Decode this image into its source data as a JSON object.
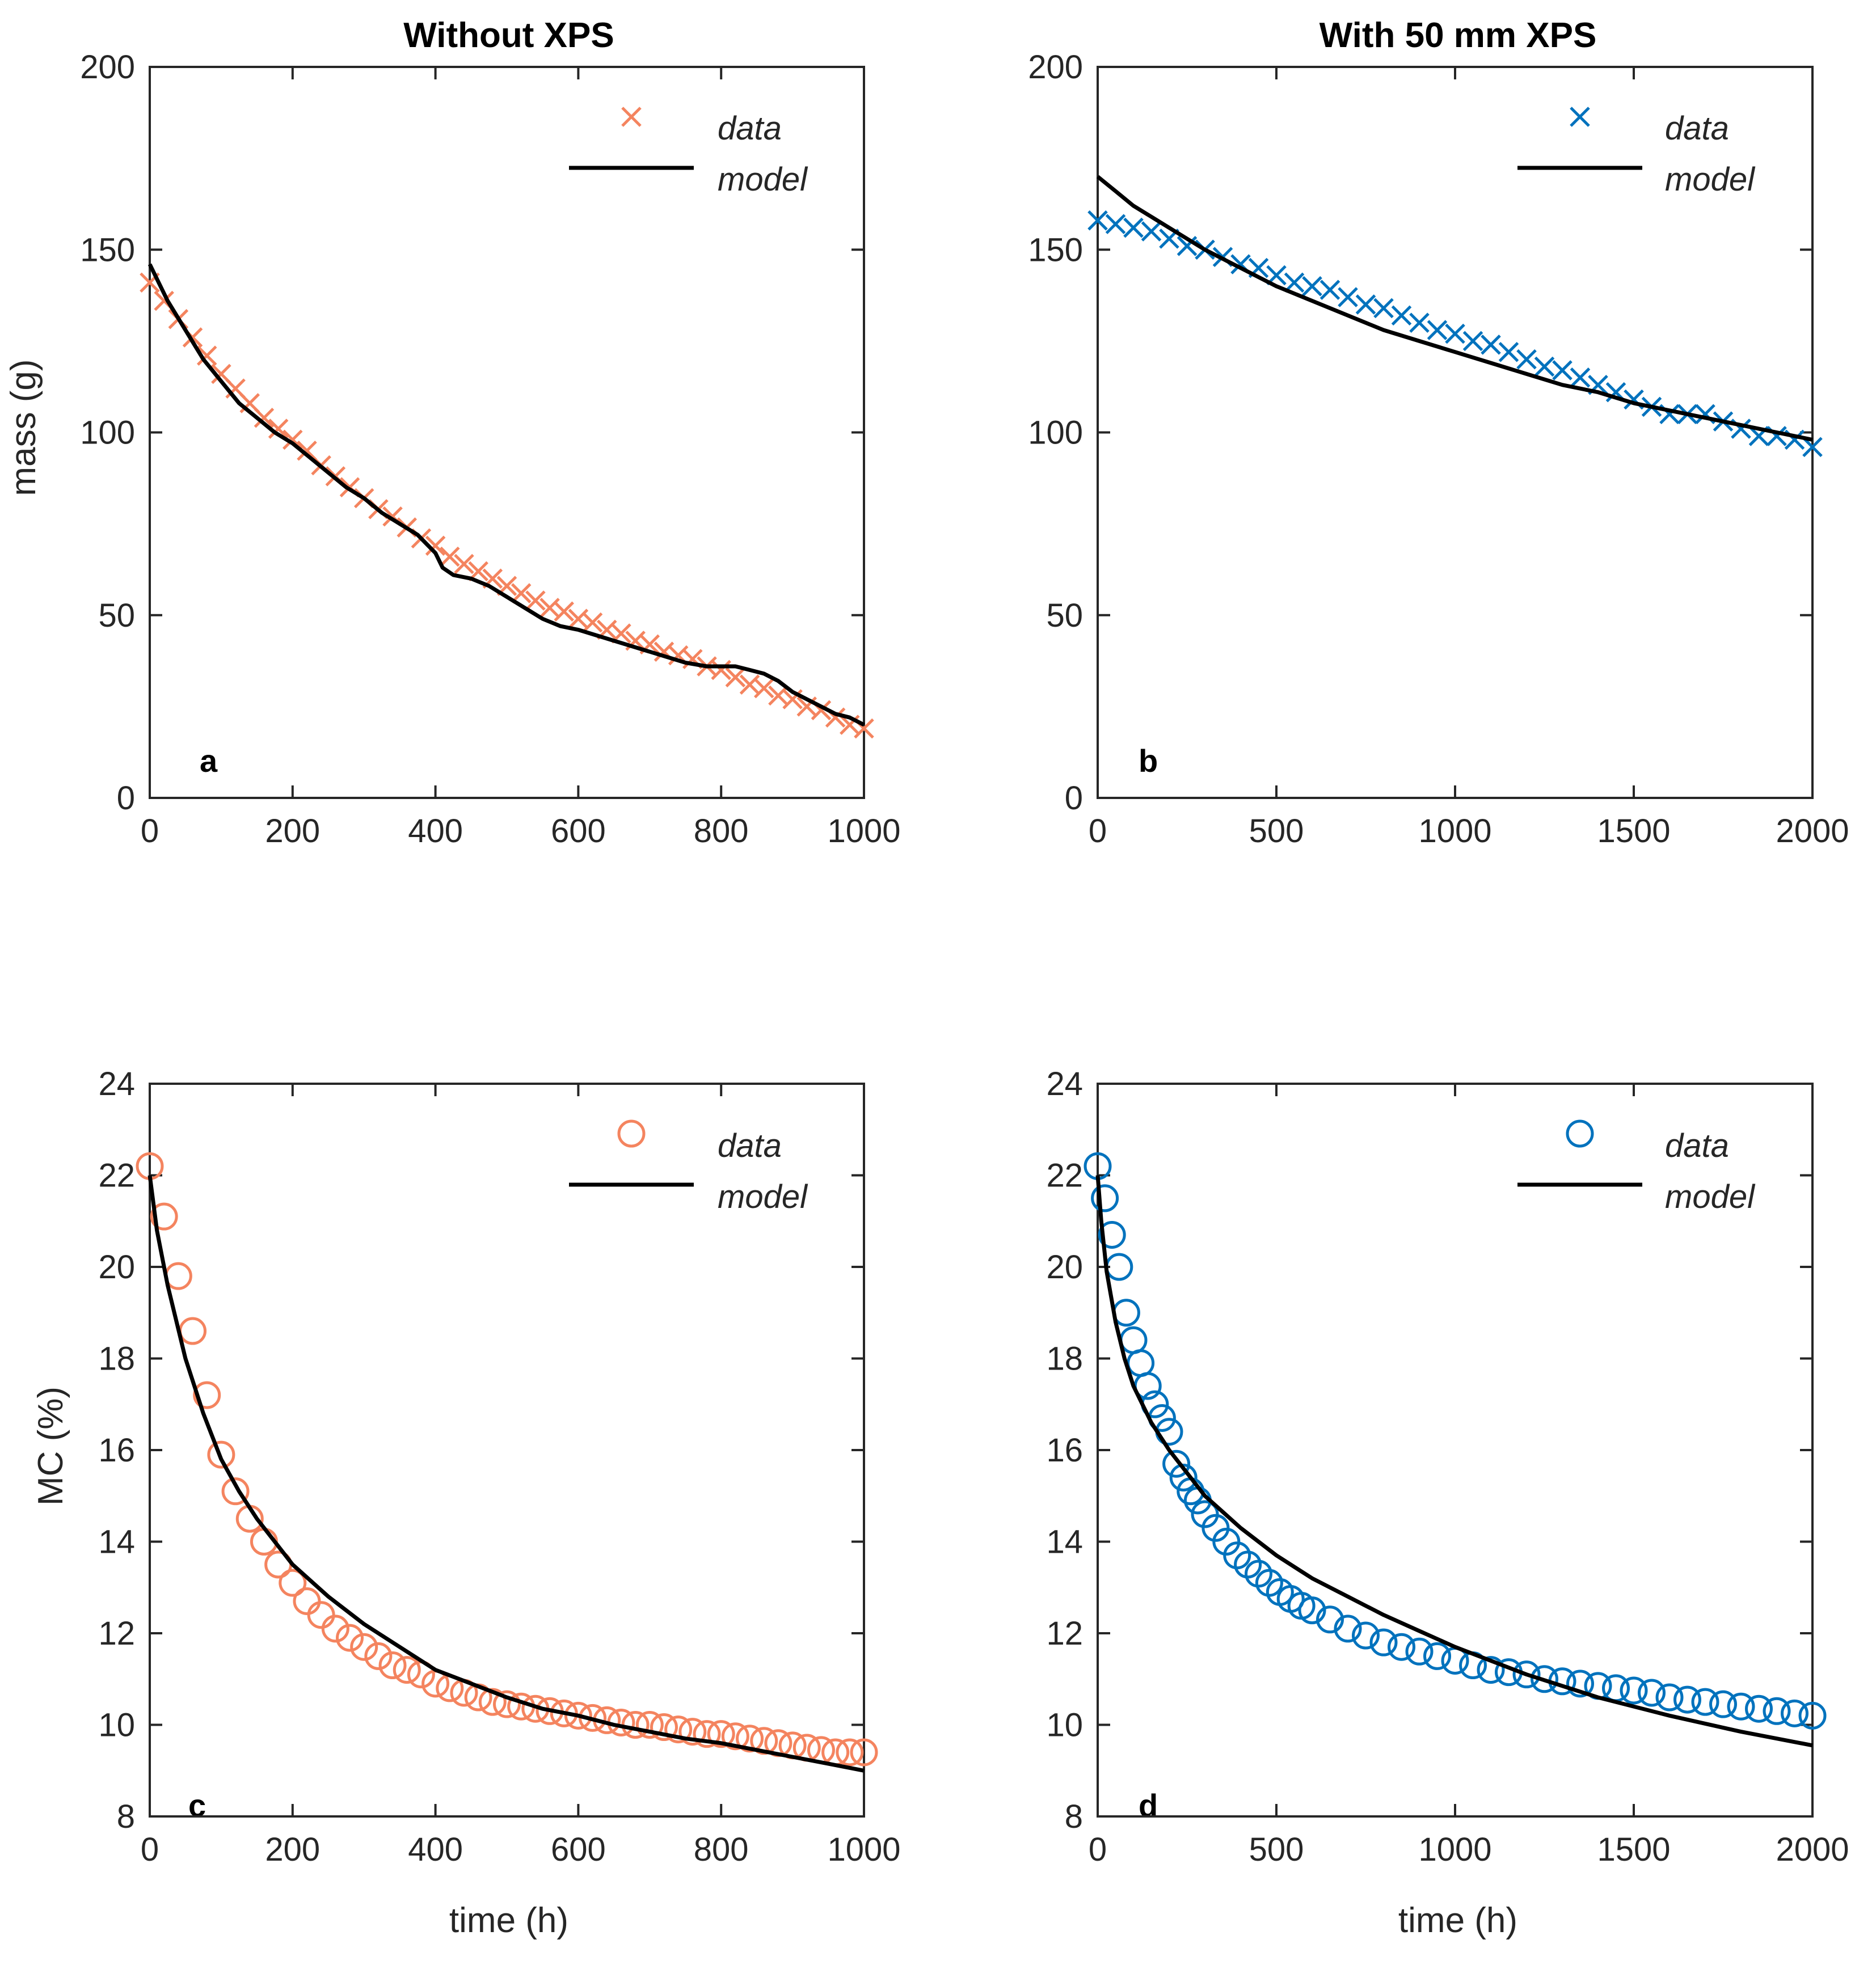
{
  "colors": {
    "left": "#F4845F",
    "right": "#0072BD",
    "model": "#000000",
    "axis": "#262626"
  },
  "chart_data": [
    {
      "type": "line",
      "panel": "a",
      "title": "Without XPS",
      "xlabel": "",
      "ylabel": "mass (g)",
      "xlim": [
        0,
        1000
      ],
      "ylim": [
        0,
        200
      ],
      "xticks": [
        "0",
        "200",
        "400",
        "600",
        "800",
        "1000"
      ],
      "yticks": [
        "0",
        "50",
        "100",
        "150",
        "200"
      ],
      "marker": "x",
      "legend": {
        "data": "data",
        "model": "model",
        "position": "top-right"
      },
      "series": [
        {
          "name": "data",
          "color_key": "left",
          "x": [
            0,
            20,
            40,
            60,
            80,
            100,
            120,
            140,
            160,
            180,
            200,
            220,
            240,
            260,
            280,
            300,
            320,
            340,
            360,
            380,
            400,
            420,
            440,
            460,
            480,
            500,
            520,
            540,
            560,
            580,
            600,
            620,
            640,
            660,
            680,
            700,
            720,
            740,
            760,
            780,
            800,
            820,
            840,
            860,
            880,
            900,
            920,
            940,
            960,
            980,
            1000
          ],
          "y": [
            141,
            136,
            131,
            126,
            121,
            116,
            112,
            108,
            104,
            101,
            98,
            95,
            91,
            88,
            85,
            82,
            79,
            77,
            74,
            71,
            69,
            66,
            64,
            62,
            60,
            58,
            56,
            54,
            52,
            51,
            49,
            48,
            46,
            45,
            43,
            42,
            40,
            39,
            38,
            36,
            35,
            33,
            31,
            30,
            28,
            27,
            25,
            24,
            22,
            20,
            19
          ]
        },
        {
          "name": "model",
          "color_key": "model",
          "x": [
            0,
            25,
            50,
            75,
            100,
            125,
            150,
            175,
            200,
            225,
            250,
            275,
            300,
            325,
            350,
            375,
            400,
            410,
            425,
            450,
            475,
            500,
            525,
            550,
            575,
            600,
            650,
            700,
            750,
            780,
            800,
            820,
            840,
            860,
            880,
            900,
            920,
            940,
            960,
            980,
            1000
          ],
          "y": [
            146,
            136,
            128,
            120,
            114,
            108,
            104,
            100,
            97,
            93,
            89,
            85,
            82,
            78,
            75,
            72,
            67,
            63,
            61,
            60,
            58,
            55,
            52,
            49,
            47,
            46,
            43,
            40,
            37,
            36,
            36,
            36,
            35,
            34,
            32,
            29,
            27,
            25,
            23,
            22,
            20
          ]
        }
      ]
    },
    {
      "type": "line",
      "panel": "b",
      "title": "With 50 mm XPS",
      "xlabel": "",
      "ylabel": "",
      "xlim": [
        0,
        2000
      ],
      "ylim": [
        0,
        200
      ],
      "xticks": [
        "0",
        "500",
        "1000",
        "1500",
        "2000"
      ],
      "yticks": [
        "0",
        "50",
        "100",
        "150",
        "200"
      ],
      "marker": "x",
      "legend": {
        "data": "data",
        "model": "model",
        "position": "top-right"
      },
      "series": [
        {
          "name": "data",
          "color_key": "right",
          "x": [
            0,
            50,
            100,
            150,
            200,
            250,
            300,
            350,
            400,
            450,
            500,
            550,
            600,
            650,
            700,
            750,
            800,
            850,
            900,
            950,
            1000,
            1050,
            1100,
            1150,
            1200,
            1250,
            1300,
            1350,
            1400,
            1450,
            1500,
            1550,
            1600,
            1650,
            1700,
            1750,
            1800,
            1850,
            1900,
            1950,
            2000
          ],
          "y": [
            158,
            157,
            156,
            155,
            153,
            151,
            150,
            148,
            146,
            145,
            143,
            141,
            140,
            139,
            137,
            135,
            134,
            132,
            130,
            128,
            127,
            125,
            124,
            122,
            120,
            118,
            117,
            115,
            113,
            111,
            109,
            107,
            105,
            105,
            105,
            103,
            101,
            99,
            99,
            98,
            96
          ]
        },
        {
          "name": "model",
          "color_key": "model",
          "x": [
            0,
            50,
            100,
            150,
            200,
            300,
            400,
            500,
            600,
            700,
            800,
            900,
            1000,
            1100,
            1200,
            1300,
            1400,
            1500,
            1600,
            1700,
            1800,
            1900,
            2000
          ],
          "y": [
            170,
            166,
            162,
            159,
            156,
            150,
            145,
            140,
            136,
            132,
            128,
            125,
            122,
            119,
            116,
            113,
            111,
            108,
            106,
            104,
            102,
            100,
            98
          ]
        }
      ]
    },
    {
      "type": "line",
      "panel": "c",
      "title": "",
      "xlabel": "time (h)",
      "ylabel": "MC (%)",
      "xlim": [
        0,
        1000
      ],
      "ylim": [
        8,
        24
      ],
      "xticks": [
        "0",
        "200",
        "400",
        "600",
        "800",
        "1000"
      ],
      "yticks": [
        "8",
        "10",
        "12",
        "14",
        "16",
        "18",
        "20",
        "22",
        "24"
      ],
      "marker": "o",
      "legend": {
        "data": "data",
        "model": "model",
        "position": "top-right"
      },
      "series": [
        {
          "name": "data",
          "color_key": "left",
          "x": [
            0,
            20,
            40,
            60,
            80,
            100,
            120,
            140,
            160,
            180,
            200,
            220,
            240,
            260,
            280,
            300,
            320,
            340,
            360,
            380,
            400,
            420,
            440,
            460,
            480,
            500,
            520,
            540,
            560,
            580,
            600,
            620,
            640,
            660,
            680,
            700,
            720,
            740,
            760,
            780,
            800,
            820,
            840,
            860,
            880,
            900,
            920,
            940,
            960,
            980,
            1000
          ],
          "y": [
            22.2,
            21.1,
            19.8,
            18.6,
            17.2,
            15.9,
            15.1,
            14.5,
            14.0,
            13.5,
            13.1,
            12.7,
            12.4,
            12.1,
            11.9,
            11.7,
            11.5,
            11.3,
            11.2,
            11.1,
            10.9,
            10.8,
            10.7,
            10.6,
            10.5,
            10.45,
            10.4,
            10.35,
            10.3,
            10.25,
            10.2,
            10.15,
            10.1,
            10.05,
            10.0,
            10.0,
            9.95,
            9.9,
            9.85,
            9.8,
            9.8,
            9.75,
            9.7,
            9.65,
            9.6,
            9.55,
            9.5,
            9.45,
            9.4,
            9.4,
            9.4
          ]
        },
        {
          "name": "model",
          "color_key": "model",
          "x": [
            0,
            10,
            25,
            50,
            75,
            100,
            125,
            150,
            200,
            250,
            300,
            350,
            400,
            450,
            500,
            550,
            600,
            650,
            700,
            750,
            800,
            850,
            900,
            950,
            1000
          ],
          "y": [
            22.0,
            20.8,
            19.6,
            18.0,
            16.8,
            15.8,
            15.1,
            14.5,
            13.5,
            12.8,
            12.2,
            11.7,
            11.2,
            10.9,
            10.6,
            10.35,
            10.2,
            10.0,
            9.85,
            9.7,
            9.6,
            9.45,
            9.3,
            9.15,
            9.0
          ]
        }
      ]
    },
    {
      "type": "line",
      "panel": "d",
      "title": "",
      "xlabel": "time (h)",
      "ylabel": "",
      "xlim": [
        0,
        2000
      ],
      "ylim": [
        8,
        24
      ],
      "xticks": [
        "0",
        "500",
        "1000",
        "1500",
        "2000"
      ],
      "yticks": [
        "8",
        "10",
        "12",
        "14",
        "16",
        "18",
        "20",
        "22",
        "24"
      ],
      "marker": "o",
      "legend": {
        "data": "data",
        "model": "model",
        "position": "top-right"
      },
      "series": [
        {
          "name": "data",
          "color_key": "right",
          "x": [
            0,
            20,
            40,
            60,
            80,
            100,
            120,
            140,
            160,
            180,
            200,
            220,
            240,
            260,
            280,
            300,
            330,
            360,
            390,
            420,
            450,
            480,
            510,
            540,
            570,
            600,
            650,
            700,
            750,
            800,
            850,
            900,
            950,
            1000,
            1050,
            1100,
            1150,
            1200,
            1250,
            1300,
            1350,
            1400,
            1450,
            1500,
            1550,
            1600,
            1650,
            1700,
            1750,
            1800,
            1850,
            1900,
            1950,
            2000
          ],
          "y": [
            22.2,
            21.5,
            20.7,
            20.0,
            19.0,
            18.4,
            17.9,
            17.4,
            17.0,
            16.7,
            16.4,
            15.7,
            15.4,
            15.1,
            14.9,
            14.6,
            14.3,
            14.0,
            13.7,
            13.5,
            13.3,
            13.1,
            12.9,
            12.75,
            12.6,
            12.5,
            12.3,
            12.1,
            11.95,
            11.8,
            11.7,
            11.6,
            11.5,
            11.4,
            11.3,
            11.2,
            11.15,
            11.1,
            11.0,
            10.95,
            10.9,
            10.85,
            10.8,
            10.75,
            10.7,
            10.6,
            10.55,
            10.5,
            10.45,
            10.4,
            10.35,
            10.3,
            10.25,
            10.2
          ]
        },
        {
          "name": "model",
          "color_key": "model",
          "x": [
            0,
            10,
            25,
            50,
            75,
            100,
            150,
            200,
            250,
            300,
            400,
            500,
            600,
            700,
            800,
            900,
            1000,
            1200,
            1400,
            1600,
            1800,
            2000
          ],
          "y": [
            22.0,
            21.0,
            19.9,
            18.8,
            18.0,
            17.4,
            16.6,
            16.0,
            15.5,
            15.0,
            14.3,
            13.7,
            13.2,
            12.8,
            12.4,
            12.05,
            11.7,
            11.1,
            10.6,
            10.2,
            9.85,
            9.55
          ]
        }
      ]
    }
  ]
}
